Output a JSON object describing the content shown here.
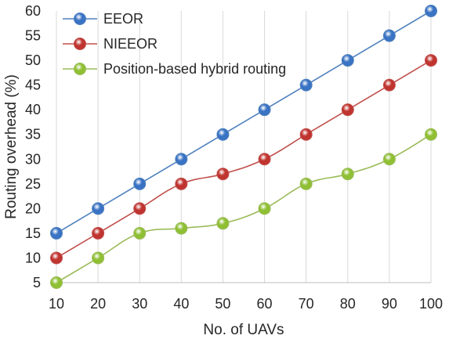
{
  "chart_data": {
    "type": "line",
    "title": "",
    "xlabel": "No. of UAVs",
    "ylabel": "Routing overhead (%)",
    "x": [
      10,
      20,
      30,
      40,
      50,
      60,
      70,
      80,
      90,
      100
    ],
    "x_tick_labels": [
      "10",
      "20",
      "30",
      "40",
      "50",
      "60",
      "70",
      "80",
      "90",
      "100"
    ],
    "y_tick_labels": [
      "5",
      "10",
      "15",
      "20",
      "25",
      "30",
      "35",
      "40",
      "45",
      "50",
      "55",
      "60"
    ],
    "ylim": [
      5,
      60
    ],
    "xlim": [
      10,
      100
    ],
    "grid": "vertical",
    "legend_position": "top-left",
    "series": [
      {
        "name": "EEOR",
        "color": "#4f81bd",
        "marker_color": "#3a73c4",
        "smooth": false,
        "values": [
          15,
          20,
          25,
          30,
          35,
          40,
          45,
          50,
          55,
          60
        ]
      },
      {
        "name": "NIEEOR",
        "color": "#c0504d",
        "marker_color": "#c0342f",
        "smooth": true,
        "values": [
          10,
          15,
          20,
          25,
          27,
          30,
          35,
          40,
          45,
          50
        ]
      },
      {
        "name": "Position-based hybrid routing",
        "color": "#9bbb59",
        "marker_color": "#8fc034",
        "smooth": true,
        "values": [
          5,
          10,
          15,
          16,
          17,
          20,
          25,
          27,
          30,
          35
        ]
      }
    ]
  }
}
